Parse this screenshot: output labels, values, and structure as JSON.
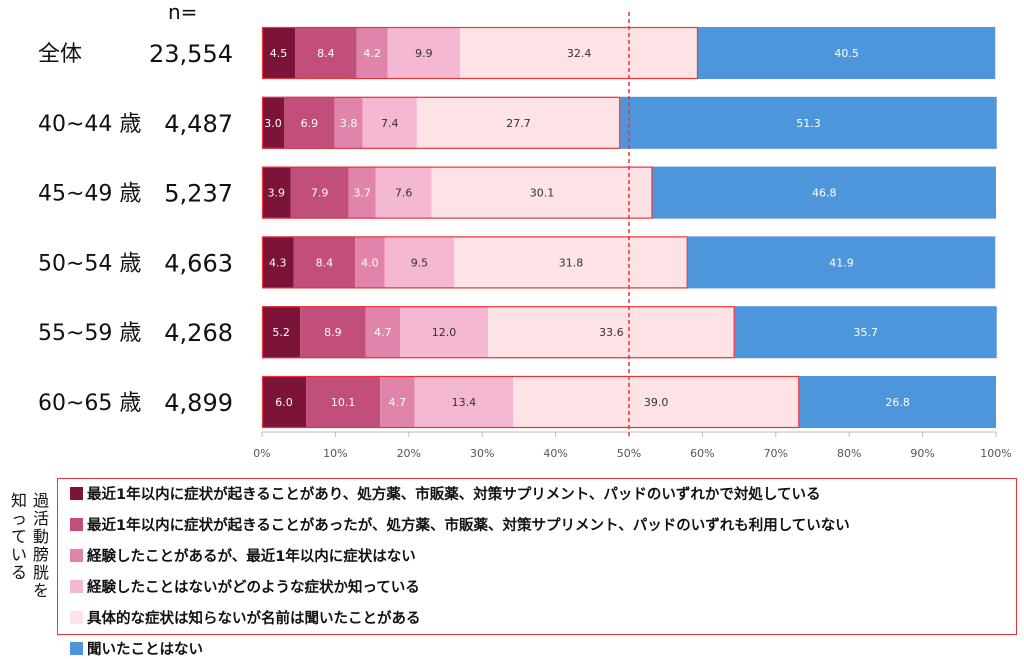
{
  "chart_data": {
    "type": "bar",
    "orientation": "horizontal",
    "stacked": true,
    "n_header": "n=",
    "categories": [
      "全体",
      "40~44 歳",
      "45~49 歳",
      "50~54 歳",
      "55~59 歳",
      "60~65 歳"
    ],
    "n_values": [
      "23,554",
      "4,487",
      "5,237",
      "4,663",
      "4,268",
      "4,899"
    ],
    "series": [
      {
        "name": "最近1年以内に症状が起きることがあり、処方薬、市販薬、対策サプリメント、パッドのいずれかで対処している",
        "color": "#7b1438",
        "label_color": "#ffffff",
        "values": [
          4.5,
          3.0,
          3.9,
          4.3,
          5.2,
          6.0
        ]
      },
      {
        "name": "最近1年以内に症状が起きることがあったが、処方薬、市販薬、対策サプリメント、パッドのいずれも利用していない",
        "color": "#c24e7b",
        "label_color": "#ffffff",
        "values": [
          8.4,
          6.9,
          7.9,
          8.4,
          8.9,
          10.1
        ]
      },
      {
        "name": "経験したことがあるが、最近1年以内に症状はない",
        "color": "#e084ac",
        "label_color": "#ffffff",
        "values": [
          4.2,
          3.8,
          3.7,
          4.0,
          4.7,
          4.7
        ]
      },
      {
        "name": "経験したことはないがどのような症状か知っている",
        "color": "#f5b8d2",
        "label_color": "#333333",
        "values": [
          9.9,
          7.4,
          7.6,
          9.5,
          12.0,
          13.4
        ]
      },
      {
        "name": "具体的な症状は知らないが名前は聞いたことがある",
        "color": "#fde3e6",
        "label_color": "#333333",
        "values": [
          32.4,
          27.7,
          30.1,
          31.8,
          33.6,
          39.0
        ]
      },
      {
        "name": "聞いたことはない",
        "color": "#4e96db",
        "label_color": "#ffffff",
        "values": [
          40.5,
          51.3,
          46.8,
          41.9,
          35.7,
          26.8
        ]
      }
    ],
    "xlim": [
      0,
      100
    ],
    "x_ticks": [
      "0%",
      "10%",
      "20%",
      "30%",
      "40%",
      "50%",
      "60%",
      "70%",
      "80%",
      "90%",
      "100%"
    ],
    "reference_line": 50,
    "reference_color": "#e8333a",
    "highlight_border_color": "#e8333a",
    "legend_placement": "bottom",
    "legend_side_label": "過活動膀胱を知っている"
  }
}
